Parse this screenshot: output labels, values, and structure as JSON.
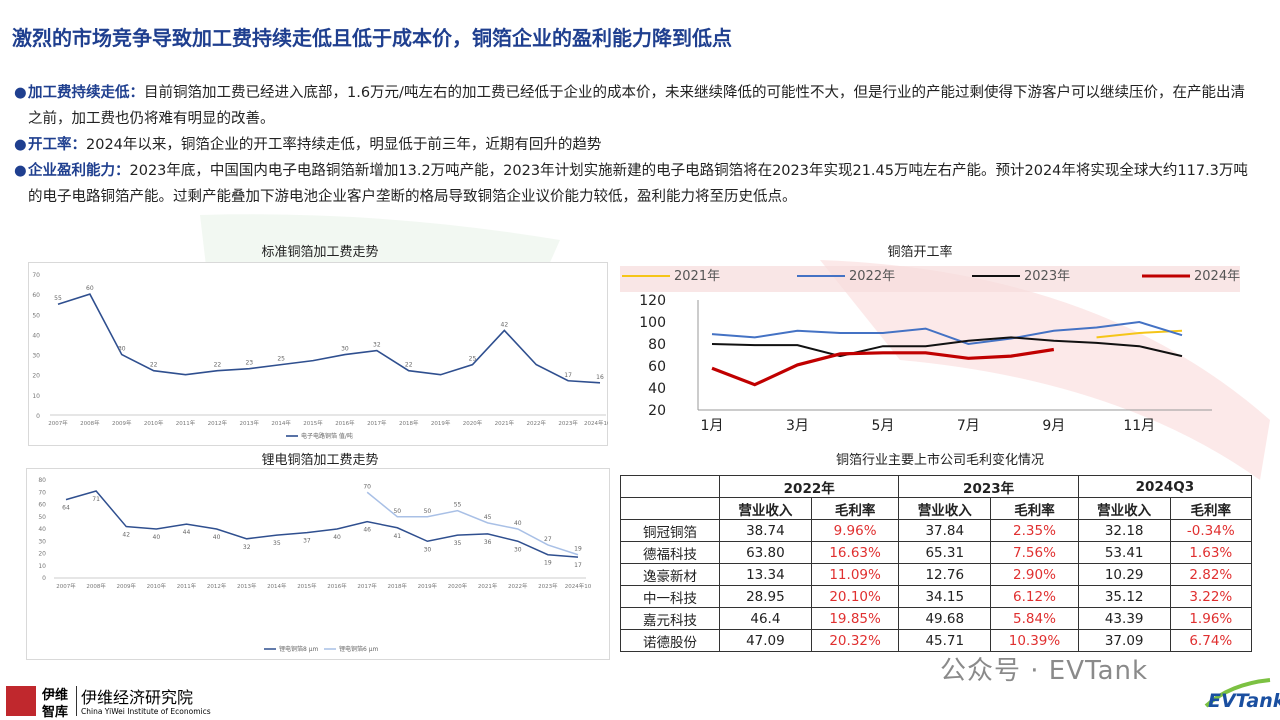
{
  "title": "激烈的市场竞争导致加工费持续走低且低于成本价，铜箔企业的盈利能力降到低点",
  "bullets": [
    {
      "key": "加工费持续走低：",
      "text": "目前铜箔加工费已经进入底部，1.6万元/吨左右的加工费已经低于企业的成本价，未来继续降低的可能性不大，但是行业的产能过剩使得下游客户可以继续压价，在产能出清之前，加工费也仍将难有明显的改善。"
    },
    {
      "key": "开工率：",
      "text": "2024年以来，铜箔企业的开工率持续走低，明显低于前三年，近期有回升的趋势"
    },
    {
      "key": "企业盈利能力：",
      "text": "2023年底，中国国内电子电路铜箔新增加13.2万吨产能，2023年计划实施新建的电子电路铜箔将在2023年实现21.45万吨左右产能。预计2024年将实现全球大约117.3万吨的电子电路铜箔产能。过剩产能叠加下游电池企业客户垄断的格局导致铜箔企业议价能力较低，盈利能力将至历史低点。"
    }
  ],
  "chart_data": [
    {
      "type": "line",
      "title": "标准铜箔加工费走势",
      "categories": [
        "2007年",
        "2008年",
        "2009年",
        "2010年",
        "2011年",
        "2012年",
        "2013年",
        "2014年",
        "2015年",
        "2016年",
        "2017年",
        "2018年",
        "2019年",
        "2020年",
        "2021年",
        "2022年",
        "2023年",
        "2024年10月"
      ],
      "series": [
        {
          "name": "电子电路铜箔 值/吨",
          "values": [
            55,
            60,
            30,
            22,
            20,
            22,
            23,
            25,
            27,
            30,
            32,
            22,
            20,
            25,
            42,
            25,
            17,
            16
          ]
        }
      ],
      "data_labels": [
        "55",
        "60",
        "30",
        "22",
        "",
        "22",
        "23",
        "25",
        "",
        "30",
        "32",
        "22",
        "",
        "25",
        "42",
        "",
        "17",
        "16"
      ],
      "ylim": [
        0,
        70
      ],
      "yticks": [
        "0",
        "10",
        "20",
        "30",
        "40",
        "50",
        "60",
        "70"
      ],
      "color": "#2f4f8f"
    },
    {
      "type": "line",
      "title": "铜箔开工率",
      "categories": [
        "1月",
        "2月",
        "3月",
        "4月",
        "5月",
        "6月",
        "7月",
        "8月",
        "9月",
        "10月",
        "11月",
        "12月"
      ],
      "xtick_labels": [
        "1月",
        "3月",
        "5月",
        "7月",
        "9月",
        "11月"
      ],
      "series": [
        {
          "name": "2021年",
          "values": [
            null,
            null,
            null,
            null,
            null,
            null,
            null,
            null,
            null,
            86,
            90,
            92
          ],
          "color": "#f5c518"
        },
        {
          "name": "2022年",
          "values": [
            89,
            86,
            92,
            90,
            90,
            94,
            80,
            85,
            92,
            95,
            100,
            88
          ],
          "color": "#4472c4"
        },
        {
          "name": "2023年",
          "values": [
            80,
            79,
            79,
            69,
            78,
            78,
            83,
            86,
            83,
            81,
            78,
            69
          ],
          "color": "#111111"
        },
        {
          "name": "2024年",
          "values": [
            58,
            43,
            61,
            71,
            72,
            72,
            67,
            69,
            75,
            null,
            null,
            null
          ],
          "color": "#c00000"
        }
      ],
      "ylim": [
        20,
        120
      ],
      "yticks": [
        "20",
        "40",
        "60",
        "80",
        "100",
        "120"
      ]
    },
    {
      "type": "line",
      "title": "锂电铜箔加工费走势",
      "categories": [
        "2007年",
        "2008年",
        "2009年",
        "2010年",
        "2011年",
        "2012年",
        "2013年",
        "2014年",
        "2015年",
        "2016年",
        "2017年",
        "2018年",
        "2019年",
        "2020年",
        "2021年",
        "2022年",
        "2023年",
        "2024年10"
      ],
      "series": [
        {
          "name": "锂电铜箔8 μm",
          "values": [
            64,
            71,
            42,
            40,
            44,
            40,
            32,
            35,
            37,
            40,
            46,
            41,
            30,
            35,
            36,
            30,
            19,
            17
          ],
          "color": "#2f4f8f"
        },
        {
          "name": "锂电铜箔6 μm",
          "values": [
            null,
            null,
            null,
            null,
            null,
            null,
            null,
            null,
            null,
            null,
            70,
            50,
            50,
            55,
            45,
            40,
            27,
            19
          ],
          "color": "#a9c0e6"
        }
      ],
      "labels_a": [
        "64",
        "71",
        "42",
        "40",
        "44",
        "40",
        "32",
        "35",
        "37",
        "40",
        "46",
        "41",
        "30",
        "35",
        "36",
        "30",
        "19",
        "17"
      ],
      "labels_b": [
        "",
        "",
        "",
        "",
        "",
        "",
        "",
        "",
        "",
        "",
        "70",
        "50",
        "50",
        "55",
        "45",
        "40",
        "27",
        "19"
      ],
      "ylim": [
        0,
        80
      ],
      "yticks": [
        "0",
        "10",
        "20",
        "30",
        "40",
        "50",
        "60",
        "70",
        "80"
      ]
    },
    {
      "type": "table",
      "title": "铜箔行业主要上市公司毛利变化情况",
      "years": [
        "2022年",
        "2023年",
        "2024Q3"
      ],
      "subheaders": [
        "营业收入",
        "毛利率"
      ],
      "rows": [
        {
          "company": "铜冠铜箔",
          "cells": [
            "38.74",
            "9.96%",
            "37.84",
            "2.35%",
            "32.18",
            "-0.34%"
          ]
        },
        {
          "company": "德福科技",
          "cells": [
            "63.80",
            "16.63%",
            "65.31",
            "7.56%",
            "53.41",
            "1.63%"
          ]
        },
        {
          "company": "逸豪新材",
          "cells": [
            "13.34",
            "11.09%",
            "12.76",
            "2.90%",
            "10.29",
            "2.82%"
          ]
        },
        {
          "company": "中一科技",
          "cells": [
            "28.95",
            "20.10%",
            "34.15",
            "6.12%",
            "35.12",
            "3.22%"
          ]
        },
        {
          "company": "嘉元科技",
          "cells": [
            "46.4",
            "19.85%",
            "49.68",
            "5.84%",
            "43.39",
            "1.96%"
          ]
        },
        {
          "company": "诺德股份",
          "cells": [
            "47.09",
            "20.32%",
            "45.71",
            "10.39%",
            "37.09",
            "6.74%"
          ]
        }
      ]
    }
  ],
  "footer": {
    "logo_short_1": "伊维",
    "logo_short_2": "智库",
    "logo_name": "伊维经济研究院",
    "logo_en": "China YiWei Institute of Economics",
    "watermark": "公众号 · EVTank",
    "brand": "EVTank"
  }
}
